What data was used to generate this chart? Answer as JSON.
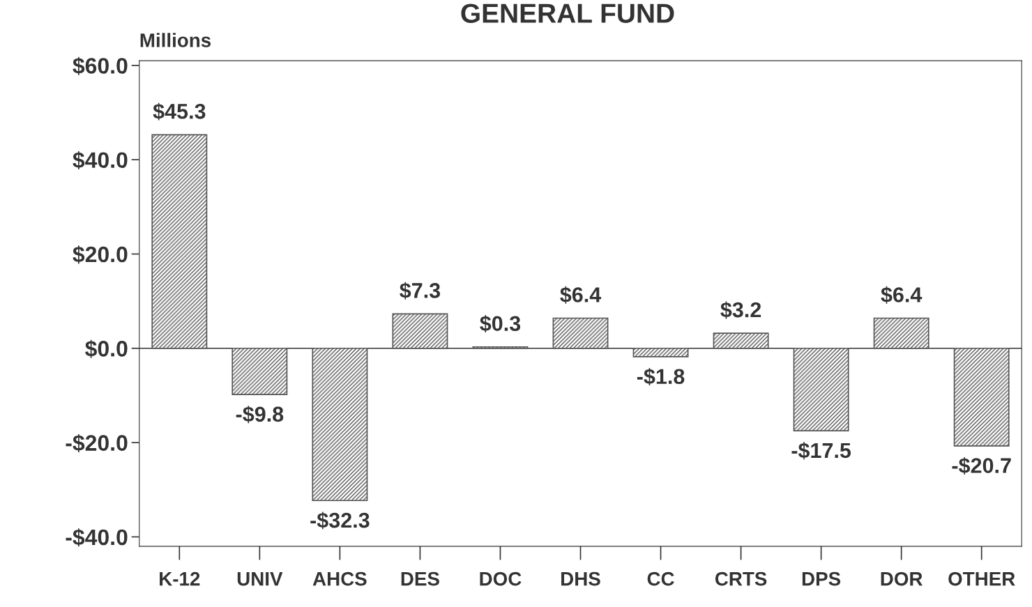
{
  "chart_data": {
    "type": "bar",
    "title": "GENERAL FUND",
    "ylabel": "Millions",
    "categories": [
      "K-12",
      "UNIV",
      "AHCS",
      "DES",
      "DOC",
      "DHS",
      "CC",
      "CRTS",
      "DPS",
      "DOR",
      "OTHER"
    ],
    "values": [
      45.3,
      -9.8,
      -32.3,
      7.3,
      0.3,
      6.4,
      -1.8,
      3.2,
      -17.5,
      6.4,
      -20.7
    ],
    "value_labels": [
      "$45.3",
      "-$9.8",
      "-$32.3",
      "$7.3",
      "$0.3",
      "$6.4",
      "-$1.8",
      "$3.2",
      "-$17.5",
      "$6.4",
      "-$20.7"
    ],
    "color": "#555555",
    "ylim": [
      -42,
      61
    ],
    "yticks": [
      {
        "value": -40,
        "label": "-$40.0"
      },
      {
        "value": -20,
        "label": "-$20.0"
      },
      {
        "value": 0,
        "label": "$0.0"
      },
      {
        "value": 20,
        "label": "$20.0"
      },
      {
        "value": 40,
        "label": "$40.0"
      },
      {
        "value": 60,
        "label": "$60.0"
      }
    ],
    "ref_lines": [
      {
        "axis": "y",
        "value": 0,
        "color": "#333333"
      }
    ],
    "grid": false,
    "legend": false
  }
}
